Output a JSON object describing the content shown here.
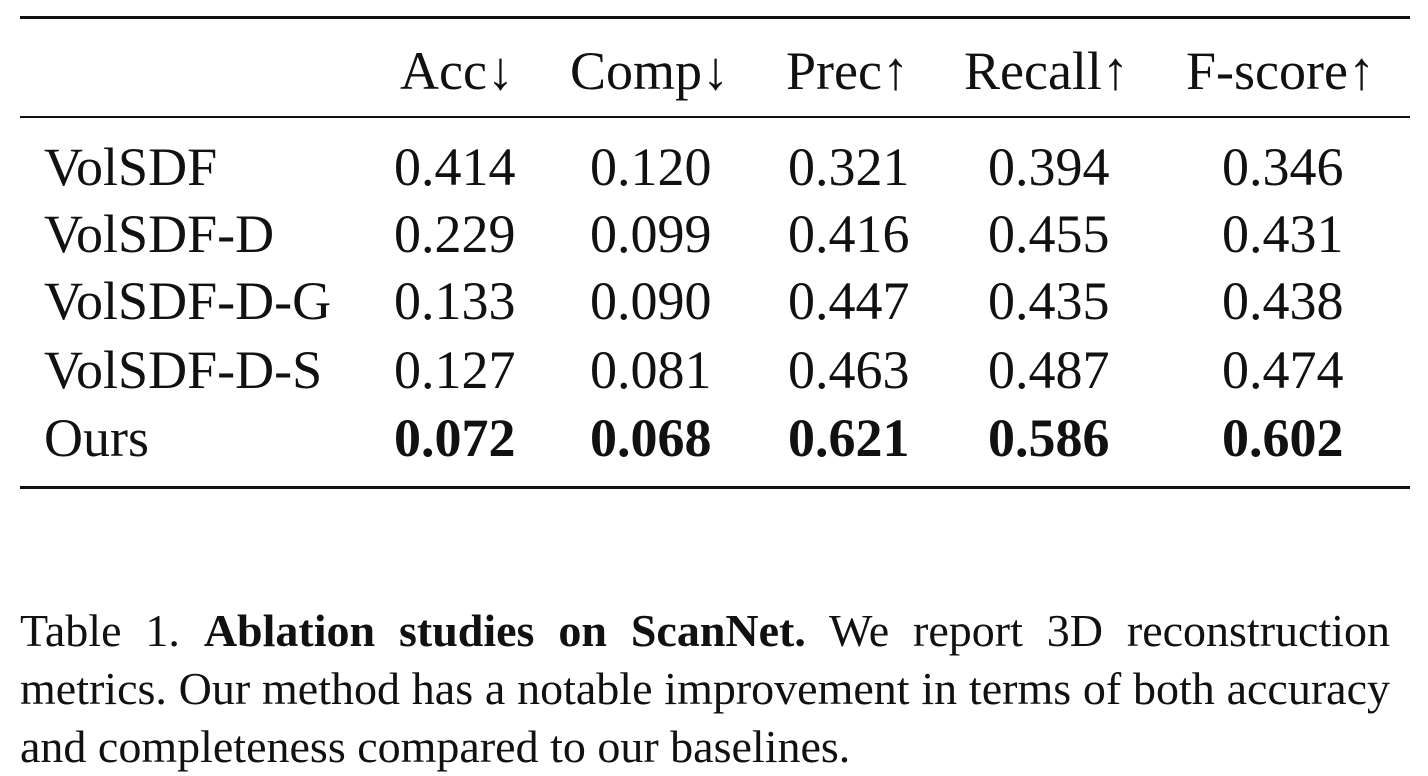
{
  "table": {
    "columns": [
      "Acc↓",
      "Comp↓",
      "Prec↑",
      "Recall↑",
      "F-score↑"
    ],
    "rows": [
      {
        "method": "VolSDF",
        "values": [
          "0.414",
          "0.120",
          "0.321",
          "0.394",
          "0.346"
        ],
        "bold": false
      },
      {
        "method": "VolSDF-D",
        "values": [
          "0.229",
          "0.099",
          "0.416",
          "0.455",
          "0.431"
        ],
        "bold": false
      },
      {
        "method": "VolSDF-D-G",
        "values": [
          "0.133",
          "0.090",
          "0.447",
          "0.435",
          "0.438"
        ],
        "bold": false
      },
      {
        "method": "VolSDF-D-S",
        "values": [
          "0.127",
          "0.081",
          "0.463",
          "0.487",
          "0.474"
        ],
        "bold": false
      },
      {
        "method": "Ours",
        "values": [
          "0.072",
          "0.068",
          "0.621",
          "0.586",
          "0.602"
        ],
        "bold": true
      }
    ]
  },
  "caption": {
    "label": "Table 1.",
    "title": "Ablation studies on ScanNet.",
    "text": "We report 3D reconstruction metrics. Our method has a notable improvement in terms of both accuracy and completeness compared to our baselines."
  }
}
